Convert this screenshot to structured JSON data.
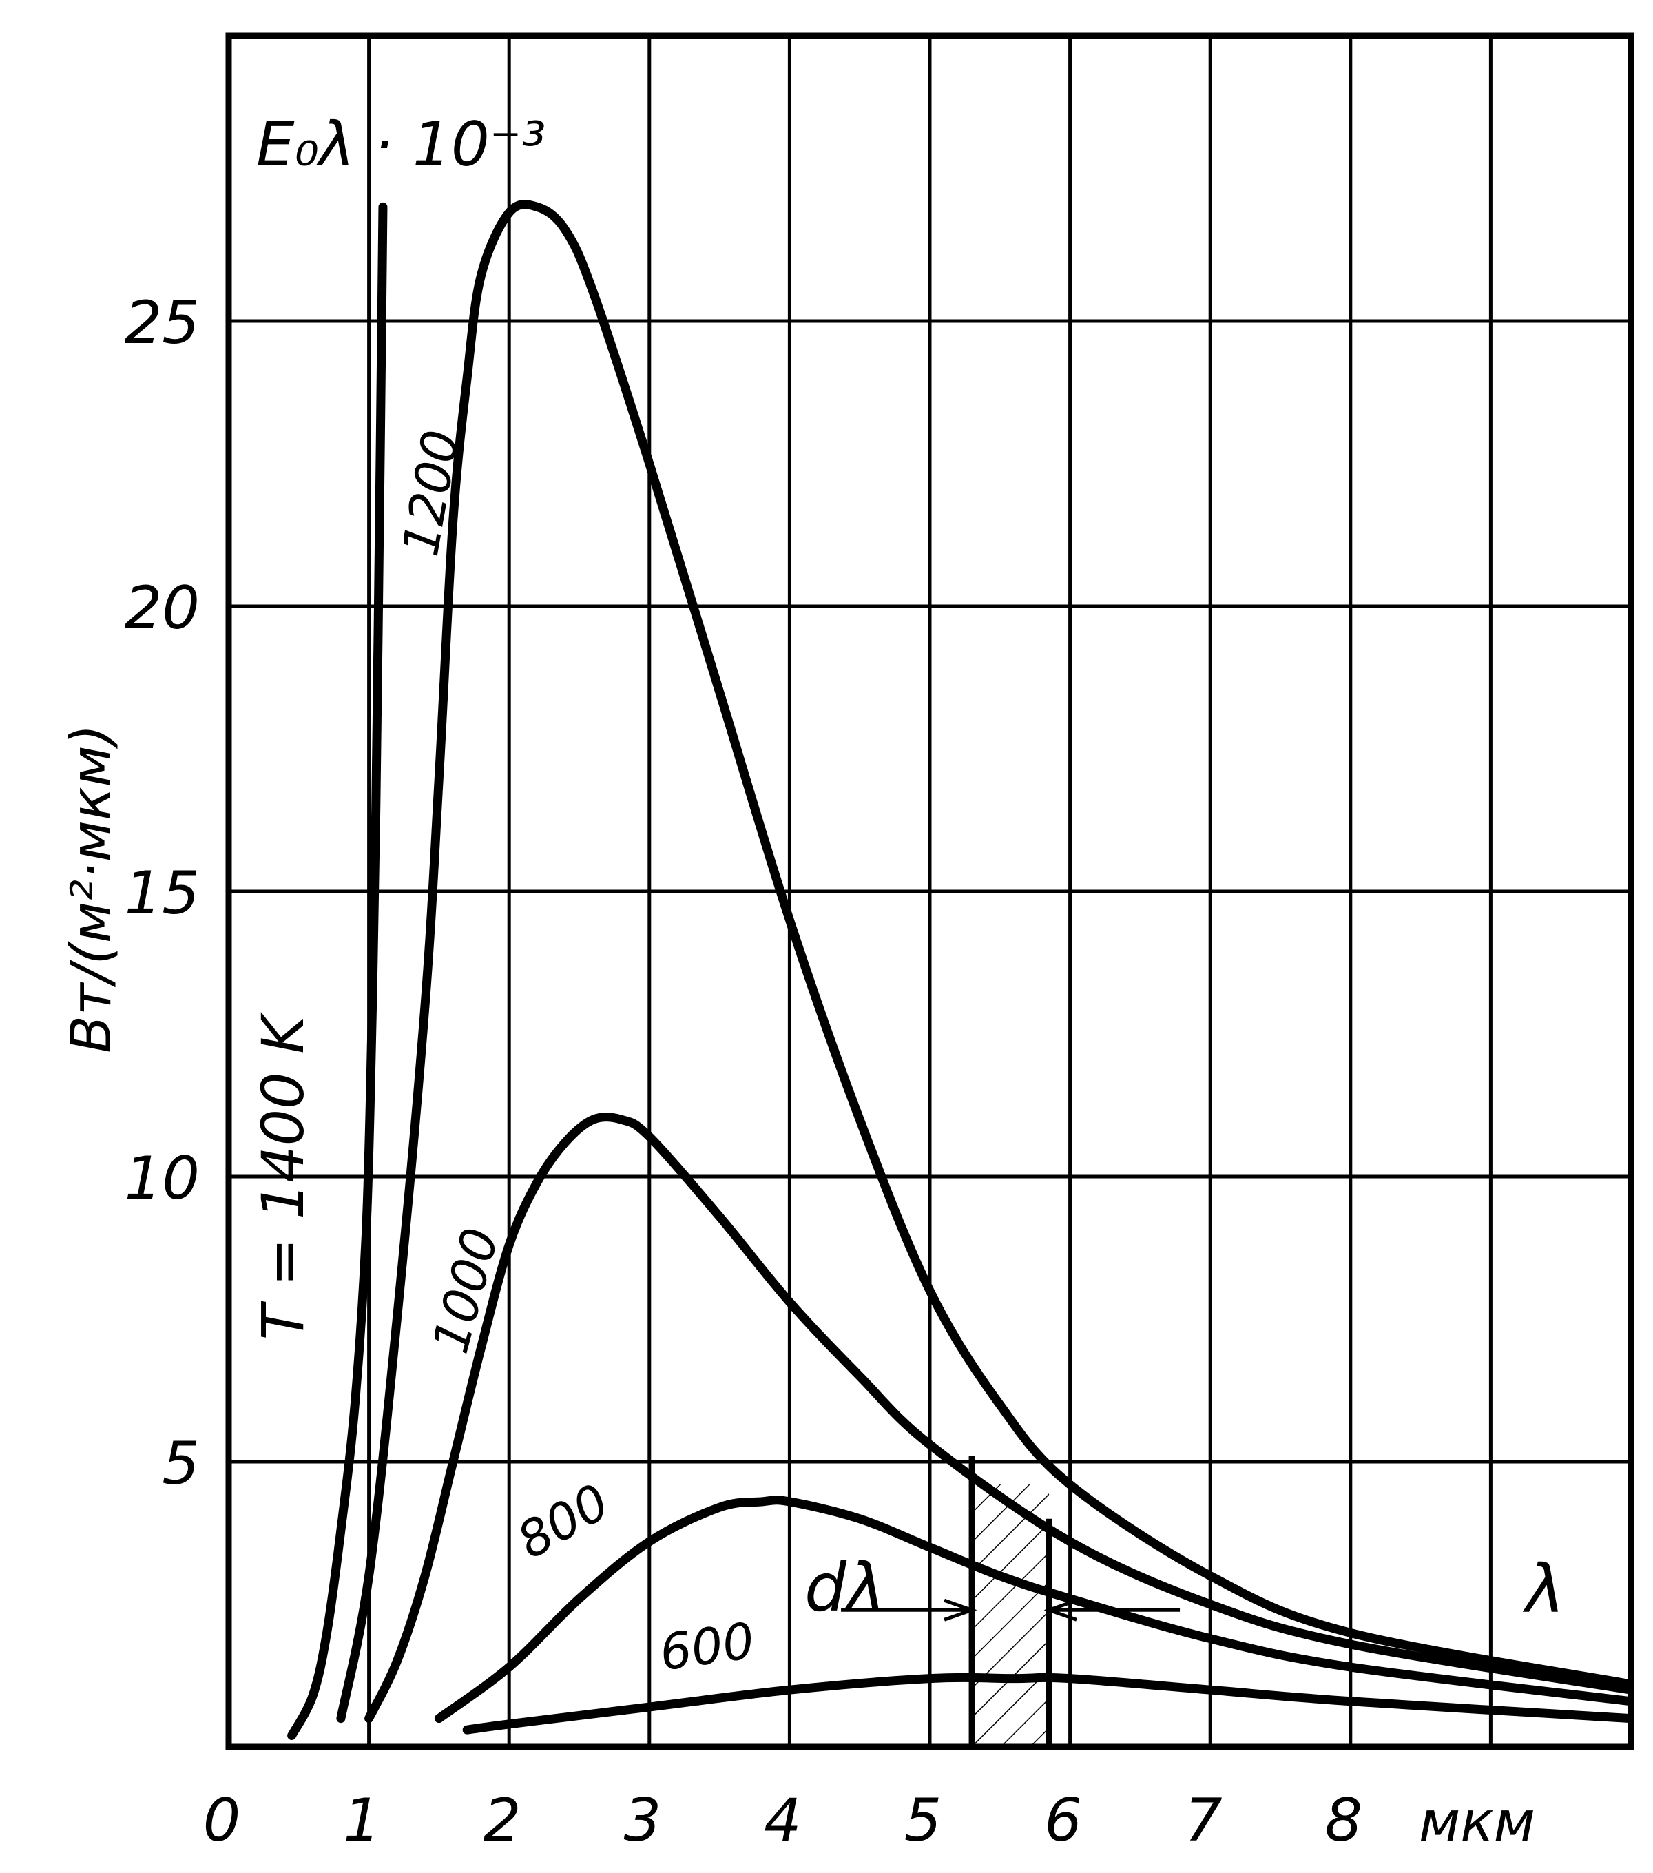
{
  "chart_data": {
    "type": "line",
    "xlabel": "мкм",
    "ylabel": "Вт/(м²·мкм)",
    "y_quantity": "E₀λ · 10⁻³",
    "x_symbol": "λ",
    "xlim": [
      0,
      10
    ],
    "ylim": [
      0,
      30
    ],
    "x_ticks": [
      0,
      1,
      2,
      3,
      4,
      5,
      6,
      7,
      8
    ],
    "x_tick_labels": [
      "0",
      "1",
      "2",
      "3",
      "4",
      "5",
      "6",
      "7",
      "8"
    ],
    "y_ticks": [
      5,
      10,
      15,
      20,
      25
    ],
    "y_tick_labels": [
      "5",
      "10",
      "15",
      "20",
      "25"
    ],
    "grid": true,
    "series": [
      {
        "name": "T = 1400 K",
        "x": [
          0.45,
          0.6,
          0.7,
          0.8,
          0.9,
          0.98,
          1.02,
          1.05,
          1.08,
          1.1
        ],
        "y": [
          0.2,
          0.9,
          2.0,
          3.8,
          6.0,
          9.0,
          12.5,
          16.5,
          22.5,
          27.0
        ]
      },
      {
        "name": "1200",
        "x": [
          0.8,
          1.0,
          1.2,
          1.4,
          1.5,
          1.6,
          1.7,
          1.8,
          2.0,
          2.2,
          2.4,
          2.6,
          3.0,
          3.5,
          4.0,
          4.5,
          5.0,
          5.5,
          6.0,
          7.0,
          8.0,
          10.0
        ],
        "y": [
          0.5,
          3.0,
          7.5,
          13.0,
          17.0,
          21.5,
          24.0,
          25.8,
          26.9,
          27.0,
          26.6,
          25.5,
          22.5,
          18.5,
          14.5,
          11.0,
          8.0,
          6.0,
          4.6,
          3.0,
          2.0,
          1.1
        ]
      },
      {
        "name": "1000",
        "x": [
          1.0,
          1.2,
          1.4,
          1.6,
          1.8,
          2.0,
          2.2,
          2.4,
          2.6,
          2.8,
          3.0,
          3.5,
          4.0,
          4.5,
          5.0,
          6.0,
          7.0,
          8.0,
          10.0
        ],
        "y": [
          0.5,
          1.5,
          3.0,
          5.0,
          7.0,
          8.8,
          9.9,
          10.6,
          11.0,
          11.0,
          10.7,
          9.3,
          7.8,
          6.5,
          5.3,
          3.6,
          2.5,
          1.8,
          1.0
        ]
      },
      {
        "name": "800",
        "x": [
          1.5,
          2.0,
          2.5,
          3.0,
          3.5,
          3.8,
          4.0,
          4.5,
          5.0,
          5.5,
          6.0,
          7.0,
          8.0,
          10.0
        ],
        "y": [
          0.5,
          1.4,
          2.6,
          3.6,
          4.2,
          4.3,
          4.3,
          4.0,
          3.5,
          3.0,
          2.6,
          1.9,
          1.4,
          0.8
        ]
      },
      {
        "name": "600",
        "x": [
          1.7,
          2.0,
          3.0,
          4.0,
          5.0,
          5.6,
          6.0,
          7.0,
          8.0,
          10.0
        ],
        "y": [
          0.3,
          0.4,
          0.7,
          1.0,
          1.2,
          1.2,
          1.2,
          1.0,
          0.8,
          0.5
        ]
      }
    ],
    "annotations": [
      {
        "text": "dλ",
        "x_range": [
          5.3,
          5.85
        ]
      },
      {
        "text": "λ"
      }
    ],
    "curve_label_texts": {
      "t1400": "T = 1400 K",
      "t1200": "1200",
      "t1000": "1000",
      "t800": "800",
      "t600": "600"
    }
  }
}
